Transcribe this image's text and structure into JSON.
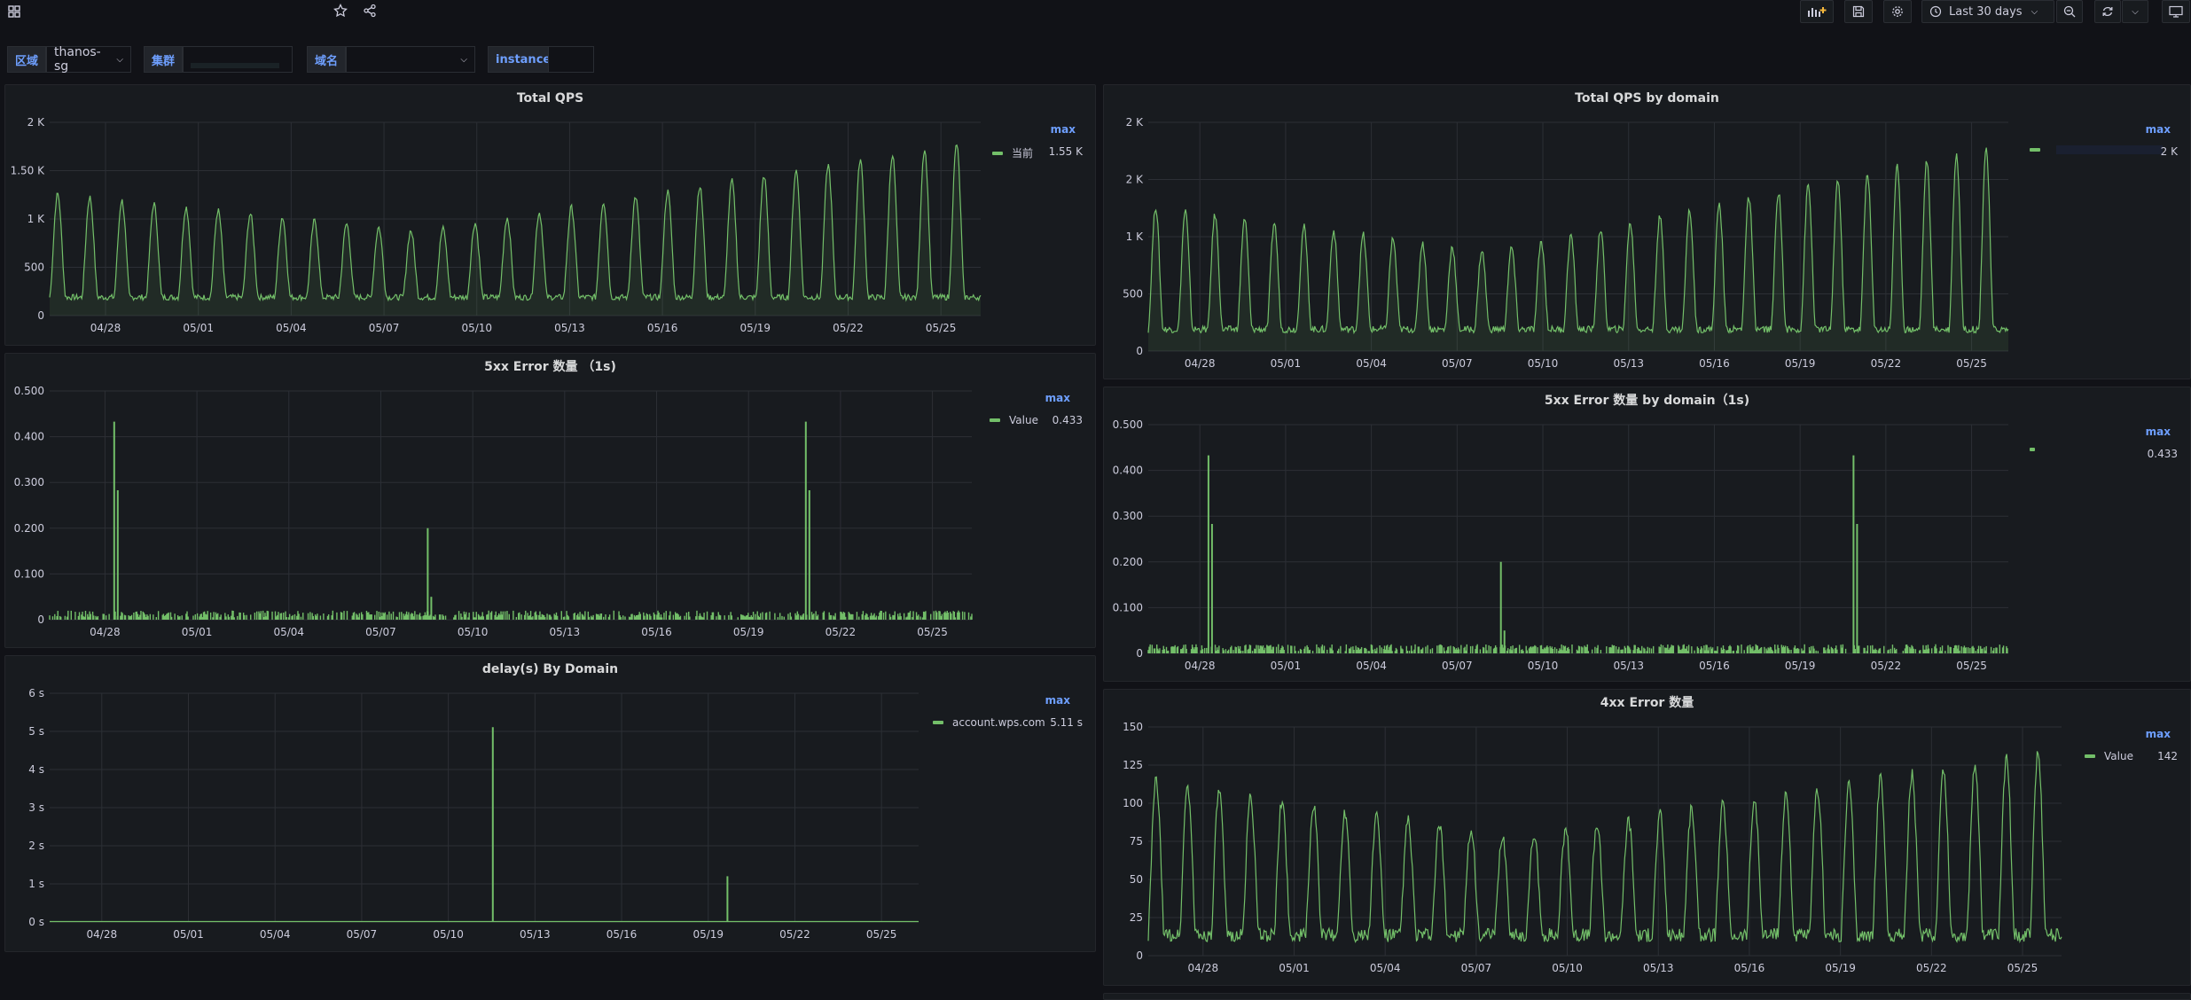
{
  "top_icons": {
    "apps": "apps-icon",
    "star": "star-icon",
    "share": "share-icon"
  },
  "toolbar": {
    "time_range": "Last 30 days",
    "icons": [
      "add-panel-icon",
      "save-icon",
      "settings-icon",
      "clock-icon",
      "chevron-down-icon",
      "zoom-out-icon",
      "refresh-icon",
      "chevron-down-icon",
      "tv-mode-icon"
    ]
  },
  "variables": [
    {
      "label": "区域",
      "value": "thanos-sg"
    },
    {
      "label": "集群",
      "value": ""
    },
    {
      "label": "域名",
      "value": ""
    },
    {
      "label": "instance",
      "value": ""
    }
  ],
  "panels": [
    {
      "id": "p1",
      "title": "Total QPS",
      "legend_header": "max",
      "legend": [
        {
          "name": "当前",
          "value": "1.55 K"
        }
      ]
    },
    {
      "id": "p2",
      "title": "Total QPS by domain",
      "legend_header": "max",
      "legend": [
        {
          "name": "",
          "value": "2 K"
        }
      ]
    },
    {
      "id": "p3",
      "title": "5xx Error 数量 （1s)",
      "legend_header": "max",
      "legend": [
        {
          "name": "Value",
          "value": "0.433"
        }
      ]
    },
    {
      "id": "p4",
      "title": "5xx Error 数量 by domain（1s)",
      "legend_header": "max",
      "legend": [
        {
          "name": "",
          "value": "0.433"
        }
      ]
    },
    {
      "id": "p5",
      "title": "delay(s) By Domain",
      "legend_header": "max",
      "legend": [
        {
          "name": "account.wps.com",
          "value": "5.11 s"
        }
      ]
    },
    {
      "id": "p6",
      "title": "4xx Error 数量",
      "legend_header": "max",
      "legend": [
        {
          "name": "Value",
          "value": "142"
        }
      ]
    }
  ],
  "chart_data": [
    {
      "type": "area",
      "title": "Total QPS",
      "series": [
        {
          "name": "当前",
          "shape": "qps"
        }
      ],
      "yticks": [
        "0",
        "500",
        "1 K",
        "1.50 K",
        "2 K"
      ],
      "ylim": [
        0,
        2000
      ],
      "xticks": [
        "04/28",
        "05/01",
        "05/04",
        "05/07",
        "05/10",
        "05/13",
        "05/16",
        "05/19",
        "05/22",
        "05/25"
      ],
      "color": "#73bf69"
    },
    {
      "type": "area",
      "title": "Total QPS by domain",
      "series": [
        {
          "shape": "qps"
        }
      ],
      "yticks": [
        "0",
        "500",
        "1 K",
        "2 K",
        "2 K"
      ],
      "ylim": [
        0,
        2000
      ],
      "xticks": [
        "04/28",
        "05/01",
        "05/04",
        "05/07",
        "05/10",
        "05/13",
        "05/16",
        "05/19",
        "05/22",
        "05/25"
      ],
      "color": "#73bf69"
    },
    {
      "type": "bar",
      "title": "5xx Error 数量 （1s)",
      "series": [
        {
          "name": "Value",
          "shape": "spikes",
          "peaks": [
            [
              0.07,
              0.433
            ],
            [
              0.41,
              0.2
            ],
            [
              0.82,
              0.433
            ]
          ]
        }
      ],
      "yticks": [
        "0",
        "0.100",
        "0.200",
        "0.300",
        "0.400",
        "0.500"
      ],
      "ylim": [
        0,
        0.5
      ],
      "xticks": [
        "04/28",
        "05/01",
        "05/04",
        "05/07",
        "05/10",
        "05/13",
        "05/16",
        "05/19",
        "05/22",
        "05/25"
      ],
      "color": "#73bf69"
    },
    {
      "type": "bar",
      "title": "5xx Error 数量 by domain（1s)",
      "series": [
        {
          "shape": "spikes",
          "peaks": [
            [
              0.07,
              0.433
            ],
            [
              0.41,
              0.2
            ],
            [
              0.82,
              0.433
            ]
          ]
        }
      ],
      "yticks": [
        "0",
        "0.100",
        "0.200",
        "0.300",
        "0.400",
        "0.500"
      ],
      "ylim": [
        0,
        0.5
      ],
      "xticks": [
        "04/28",
        "05/01",
        "05/04",
        "05/07",
        "05/10",
        "05/13",
        "05/16",
        "05/19",
        "05/22",
        "05/25"
      ],
      "color": "#73bf69"
    },
    {
      "type": "line",
      "title": "delay(s) By Domain",
      "series": [
        {
          "name": "account.wps.com",
          "shape": "delay",
          "peaks": [
            [
              0.51,
              5.11
            ],
            [
              0.78,
              1.2
            ]
          ]
        }
      ],
      "yticks": [
        "0 s",
        "1 s",
        "2 s",
        "3 s",
        "4 s",
        "5 s",
        "6 s"
      ],
      "ylim": [
        0,
        6
      ],
      "xticks": [
        "04/28",
        "05/01",
        "05/04",
        "05/07",
        "05/10",
        "05/13",
        "05/16",
        "05/19",
        "05/22",
        "05/25"
      ],
      "color": "#73bf69"
    },
    {
      "type": "line",
      "title": "4xx Error 数量",
      "series": [
        {
          "name": "Value",
          "shape": "noisy"
        }
      ],
      "yticks": [
        "0",
        "25",
        "50",
        "75",
        "100",
        "125",
        "150"
      ],
      "ylim": [
        0,
        150
      ],
      "xticks": [
        "04/28",
        "05/01",
        "05/04",
        "05/07",
        "05/10",
        "05/13",
        "05/16",
        "05/19",
        "05/22",
        "05/25"
      ],
      "color": "#73bf69"
    }
  ]
}
